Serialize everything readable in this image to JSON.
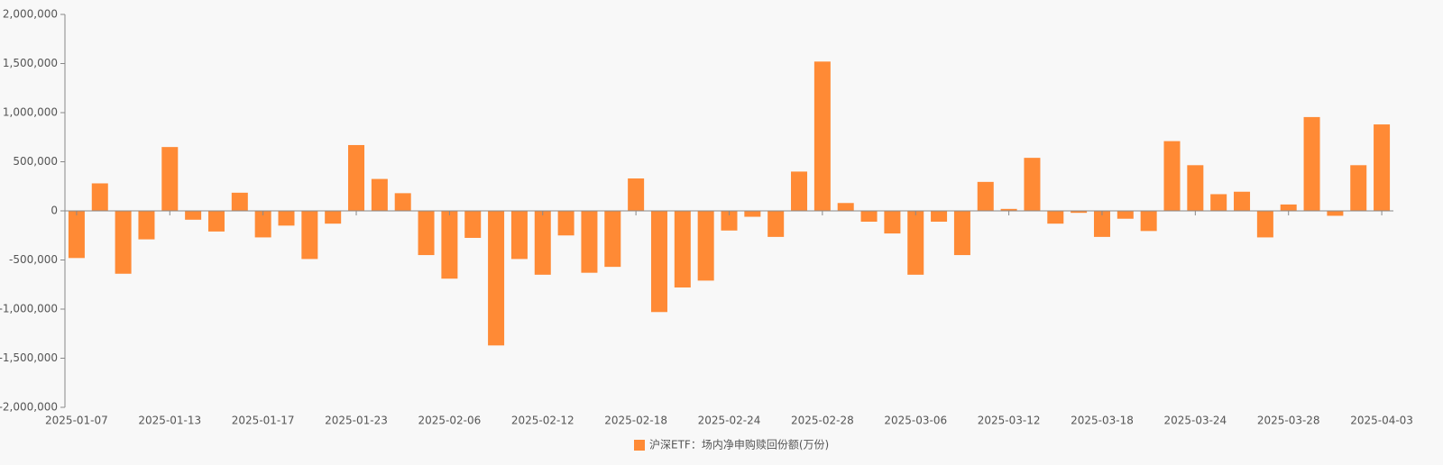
{
  "chart_data": {
    "type": "bar",
    "categories": [
      "2025-01-07",
      null,
      null,
      null,
      "2025-01-13",
      null,
      null,
      null,
      "2025-01-17",
      null,
      null,
      null,
      "2025-01-23",
      null,
      null,
      null,
      "2025-02-06",
      null,
      null,
      null,
      "2025-02-12",
      null,
      null,
      null,
      "2025-02-18",
      null,
      null,
      null,
      "2025-02-24",
      null,
      null,
      null,
      "2025-02-28",
      null,
      null,
      null,
      "2025-03-06",
      null,
      null,
      null,
      "2025-03-12",
      null,
      null,
      null,
      "2025-03-18",
      null,
      null,
      null,
      "2025-03-24",
      null,
      null,
      null,
      "2025-03-28",
      null,
      null,
      null,
      "2025-04-03"
    ],
    "series": [
      {
        "name": "沪深ETF：场内净申购赎回份额(万份)",
        "color": "#ff8a35",
        "values": [
          -480000,
          280000,
          -640000,
          -290000,
          650000,
          -90000,
          -210000,
          185000,
          -270000,
          -150000,
          -490000,
          -130000,
          670000,
          325000,
          180000,
          -450000,
          -690000,
          -275000,
          -1370000,
          -490000,
          -650000,
          -250000,
          -630000,
          -570000,
          330000,
          -1030000,
          -780000,
          -710000,
          -200000,
          -60000,
          -265000,
          400000,
          1520000,
          80000,
          -110000,
          -230000,
          -650000,
          -110000,
          -450000,
          295000,
          20000,
          540000,
          -130000,
          -20000,
          -265000,
          -80000,
          -205000,
          710000,
          465000,
          170000,
          195000,
          -270000,
          65000,
          955000,
          -50000,
          465000,
          880000
        ]
      }
    ],
    "ylim": [
      -2000000,
      2000000
    ],
    "yticks": [
      {
        "value": -2000000,
        "label": "-2,000,000"
      },
      {
        "value": -1500000,
        "label": "-1,500,000"
      },
      {
        "value": -1000000,
        "label": "-1,000,000"
      },
      {
        "value": -500000,
        "label": "-500,000"
      },
      0,
      {
        "value": 500000,
        "label": "500,000"
      },
      {
        "value": 1000000,
        "label": "1,000,000"
      },
      {
        "value": 1500000,
        "label": "1,500,000"
      },
      {
        "value": 2000000,
        "label": "2,000,000"
      }
    ],
    "legend": "bottom"
  }
}
